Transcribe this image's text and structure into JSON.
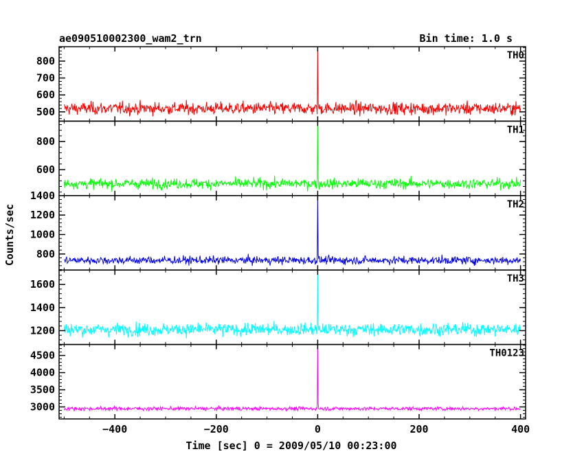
{
  "header": {
    "title": "ae090510002300_wam2_trn",
    "bin_time": "Bin time: 1.0 s"
  },
  "chart_data": {
    "type": "line",
    "xlabel": "Time [sec] 0 = 2009/05/10 00:23:00",
    "ylabel": "Counts/sec",
    "xlim": [
      -510,
      410
    ],
    "x_ticks": [
      -400,
      -200,
      0,
      200,
      400
    ],
    "x_tick_labels": [
      "−400",
      "−200",
      "0",
      "200",
      "400"
    ],
    "x_range_data": [
      -500,
      400
    ],
    "bin_time_s": 1.0,
    "grid": false,
    "panels": [
      {
        "name": "TH0",
        "color": "#ff0000",
        "ylim": [
          445,
          885
        ],
        "y_ticks": [
          500,
          600,
          700,
          800
        ],
        "y_tick_labels": [
          "500",
          "600",
          "700",
          "800"
        ],
        "baseline": 520,
        "noise": 40,
        "burst_peak": 890,
        "burst_time": 0
      },
      {
        "name": "TH1",
        "color": "#00ff00",
        "ylim": [
          415,
          945
        ],
        "y_ticks": [
          600,
          800
        ],
        "y_tick_labels": [
          "600",
          "800"
        ],
        "baseline": 500,
        "noise": 40,
        "burst_peak": 950,
        "burst_time": 0
      },
      {
        "name": "TH2",
        "color": "#0000ee",
        "ylim": [
          635,
          1400
        ],
        "y_ticks": [
          800,
          1000,
          1200,
          1400
        ],
        "y_tick_labels": [
          "800",
          "1000",
          "1200",
          "1400"
        ],
        "baseline": 735,
        "noise": 45,
        "burst_peak": 1400,
        "burst_time": 0
      },
      {
        "name": "TH3",
        "color": "#00ffff",
        "ylim": [
          1080,
          1725
        ],
        "y_ticks": [
          1200,
          1400,
          1600
        ],
        "y_tick_labels": [
          "1200",
          "1400",
          "1600"
        ],
        "baseline": 1210,
        "noise": 60,
        "burst_peak": 1730,
        "burst_time": 0
      },
      {
        "name": "TH0123",
        "color": "#ff00ff",
        "ylim": [
          2650,
          4820
        ],
        "y_ticks": [
          3000,
          3500,
          4000,
          4500
        ],
        "y_tick_labels": [
          "3000",
          "3500",
          "4000",
          "4500"
        ],
        "baseline": 2950,
        "noise": 60,
        "burst_peak": 4830,
        "burst_time": 0
      }
    ]
  }
}
